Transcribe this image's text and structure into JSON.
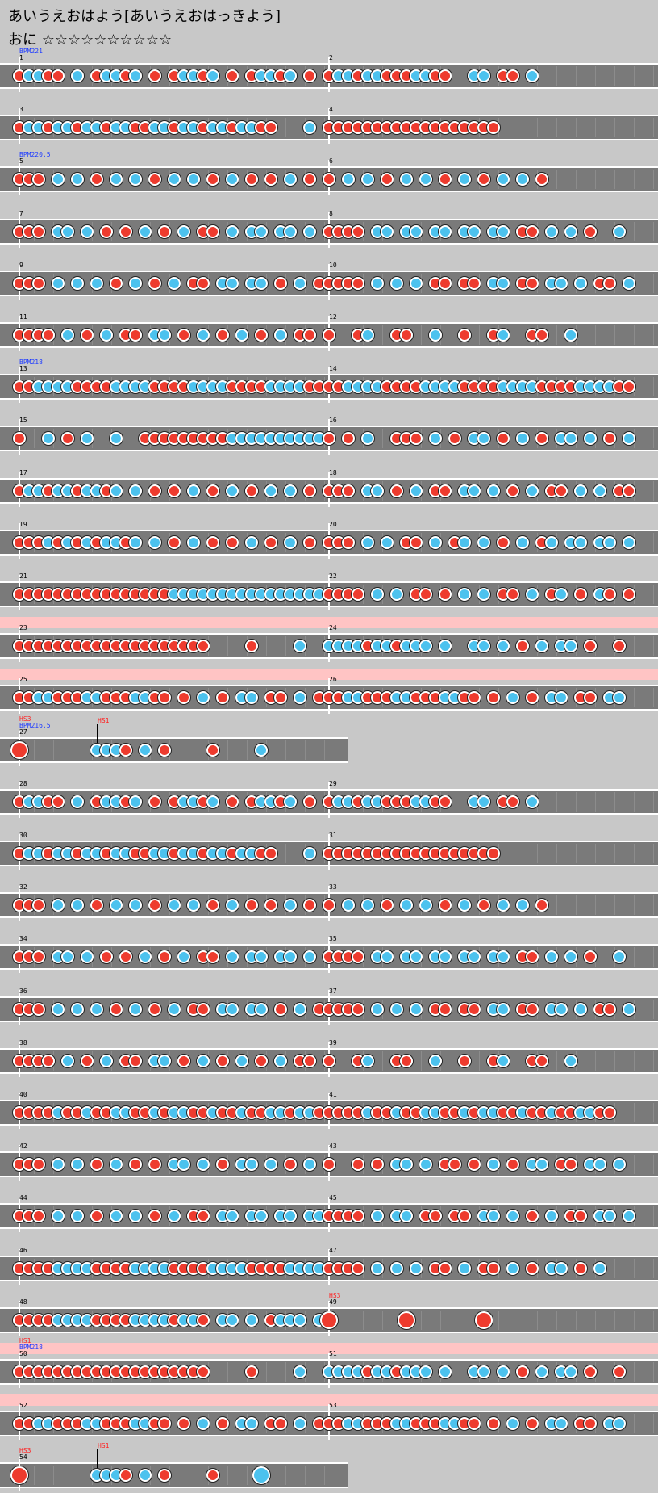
{
  "title": "あいうえおはよう[あいうえおはっきよう]",
  "subtitle": "おに ☆☆☆☆☆☆☆☆☆☆",
  "colors": {
    "don": "#ee3b2e",
    "ka": "#4cc2ee",
    "lane": "#7a7a7a",
    "gogo": "#ffc4c4",
    "bpm_text": "#1f3cff",
    "hs_text": "#ff2020"
  },
  "rows": [
    {
      "measures": [
        {
          "num": "1",
          "notes": "dkkdd k dkkdk d dkkdk d dkkdk d",
          "pre": "BPM221"
        },
        {
          "num": "2",
          "notes": "dkkdkkdddkkdd  kk dd k"
        }
      ]
    },
    {
      "measures": [
        {
          "num": "3",
          "notes": "dkkdkkdkkdkkddkkdkkdkkdkkdd   k"
        },
        {
          "num": "4",
          "notes": "dddddddddddddddddd"
        }
      ]
    },
    {
      "measures": [
        {
          "num": "5",
          "notes": "ddd k k d k k d k k d k d d k d",
          "pre": "BPM220.5"
        },
        {
          "num": "6",
          "notes": "d k k d k k d k d k k d"
        }
      ]
    },
    {
      "measures": [
        {
          "num": "7",
          "notes": "ddd kk k d d k d k dd k kk kk k d"
        },
        {
          "num": "8",
          "notes": "dddd kk kk kk kk kk dd k k d  k"
        }
      ]
    },
    {
      "measures": [
        {
          "num": "9",
          "notes": "ddd k k k d k d k dd kk kk d k d"
        },
        {
          "num": "10",
          "notes": "dddd k k k dd dd kk dd kk k dd kk k"
        }
      ]
    },
    {
      "measures": [
        {
          "num": "11",
          "notes": "dddd k d k dd kk d k d k d k dd k d k k"
        },
        {
          "num": "12",
          "notes": "d  dk  dd  k  d  dk  dd  k"
        }
      ]
    },
    {
      "measures": [
        {
          "num": "13",
          "notes": "ddkkkkddddkkkkddddkkkkddddkkkkdd",
          "pre": "BPM218"
        },
        {
          "num": "14",
          "notes": "ddkkkkddddkkkkddddkkkkddddkkkkdd"
        }
      ]
    },
    {
      "measures": [
        {
          "num": "15",
          "notes": "d  k d k  k  dddddddddkkkkkkkkkk"
        },
        {
          "num": "16",
          "notes": "d d k  ddd k d kk d k d kk k d k k"
        }
      ]
    },
    {
      "measures": [
        {
          "num": "17",
          "notes": "dkkdkkdkkdk k d d k d k d k k d"
        },
        {
          "num": "18",
          "notes": "ddd kk d k dd kk k d k dd k k dd k"
        }
      ]
    },
    {
      "measures": [
        {
          "num": "19",
          "notes": "dddkdkdkdkkdk k d k d d k d k d"
        },
        {
          "num": "20",
          "notes": "ddd k k dd k dk k d k dk kk kk k"
        }
      ]
    },
    {
      "measures": [
        {
          "num": "21",
          "notes": "ddddddddddddddddkkkkkkkkkkkkkkkk"
        },
        {
          "num": "22",
          "notes": "dddd k k dd d k k dd k dk d kd d"
        }
      ]
    },
    {
      "gogo": true,
      "measures": [
        {
          "num": "23",
          "notes": "dddddddddddddddddddd    d    k"
        },
        {
          "num": "24",
          "notes": "kkkkdkkdkkk k  kk k d k kk d  d"
        }
      ]
    },
    {
      "gogo": true,
      "measures": [
        {
          "num": "25",
          "notes": "ddkkdddkkdddkkdd d k d kk dd k d k"
        },
        {
          "num": "26",
          "notes": "ddkkdddkkdddkkdd d k d kk dd kk k"
        }
      ]
    },
    {
      "short": true,
      "measures": [
        {
          "num": "27",
          "notes": "D       kkkd k d    d    k",
          "pre": "HS3",
          "pre2": "BPM216.5",
          "hs": "HS1"
        }
      ]
    },
    {
      "measures": [
        {
          "num": "28",
          "notes": "dkkdd k dkkdk d dkkdk d dkkdk d"
        },
        {
          "num": "29",
          "notes": "dkkdkkdddkkdd  kk dd k"
        }
      ]
    },
    {
      "measures": [
        {
          "num": "30",
          "notes": "dkkdkkdkkdkkddkkdkkdkkdkkdd   k"
        },
        {
          "num": "31",
          "notes": "dddddddddddddddddd"
        }
      ]
    },
    {
      "measures": [
        {
          "num": "32",
          "notes": "ddd k k d k k d k k d k d d k d"
        },
        {
          "num": "33",
          "notes": "d k k d k k d k d k k d"
        }
      ]
    },
    {
      "measures": [
        {
          "num": "34",
          "notes": "ddd kk k d d k d k dd k kk kk k d"
        },
        {
          "num": "35",
          "notes": "dddd kk kk kk kk kk dd k k d  k"
        }
      ]
    },
    {
      "measures": [
        {
          "num": "36",
          "notes": "ddd k k k d k d k dd kk kk d k d"
        },
        {
          "num": "37",
          "notes": "dddd k k k dd dd kk dd kk k dd kk k"
        }
      ]
    },
    {
      "measures": [
        {
          "num": "38",
          "notes": "dddd k d k dd kk d k d k d k dd k d k k"
        },
        {
          "num": "39",
          "notes": "d  dk  dd  k  d  dk  dd  k"
        }
      ]
    },
    {
      "measures": [
        {
          "num": "40",
          "notes": "ddddkddkddkkddkdkkddkddkddkkdkkd"
        },
        {
          "num": "41",
          "notes": "ddddkddkddkkddkdkkddkddkddkkdd"
        }
      ]
    },
    {
      "measures": [
        {
          "num": "42",
          "notes": "ddd k k d k d d kk k d kk k d k"
        },
        {
          "num": "43",
          "notes": "d  d d kk k dd d k d kk dd kk k"
        }
      ]
    },
    {
      "measures": [
        {
          "num": "44",
          "notes": "ddd k k d k k d k dd kk kk kk kk kk k"
        },
        {
          "num": "45",
          "notes": "dddd k kk dd dd kk k d k dd kk k"
        }
      ]
    },
    {
      "measures": [
        {
          "num": "46",
          "notes": "ddddkkkkddddkkkkddddkkkkddddkkkk"
        },
        {
          "num": "47",
          "notes": "dddd k k k dd k dd k d kk d k"
        }
      ]
    },
    {
      "measures": [
        {
          "num": "48",
          "notes": "ddddkkkkddddkkkkdkkd kk k dkkk k"
        },
        {
          "num": "49",
          "notes": "D       D       D",
          "pre": "HS3"
        }
      ]
    },
    {
      "gogo": true,
      "measures": [
        {
          "num": "50",
          "notes": "dddddddddddddddddddd    d    k",
          "pre": "HS1",
          "pre2": "BPM218"
        },
        {
          "num": "51",
          "notes": "kkkkdkkdkkk k  kk k d k kk d  d"
        }
      ]
    },
    {
      "gogo": true,
      "measures": [
        {
          "num": "52",
          "notes": "ddkkdddkkdddkkdd d k d kk dd k d k"
        },
        {
          "num": "53",
          "notes": "ddkkdddkkdddkkdd d k d kk dd kk k"
        }
      ]
    },
    {
      "short": true,
      "measures": [
        {
          "num": "54",
          "notes": "D       kkkd k d    d    K",
          "pre": "HS3",
          "hs": "HS1"
        }
      ]
    }
  ]
}
